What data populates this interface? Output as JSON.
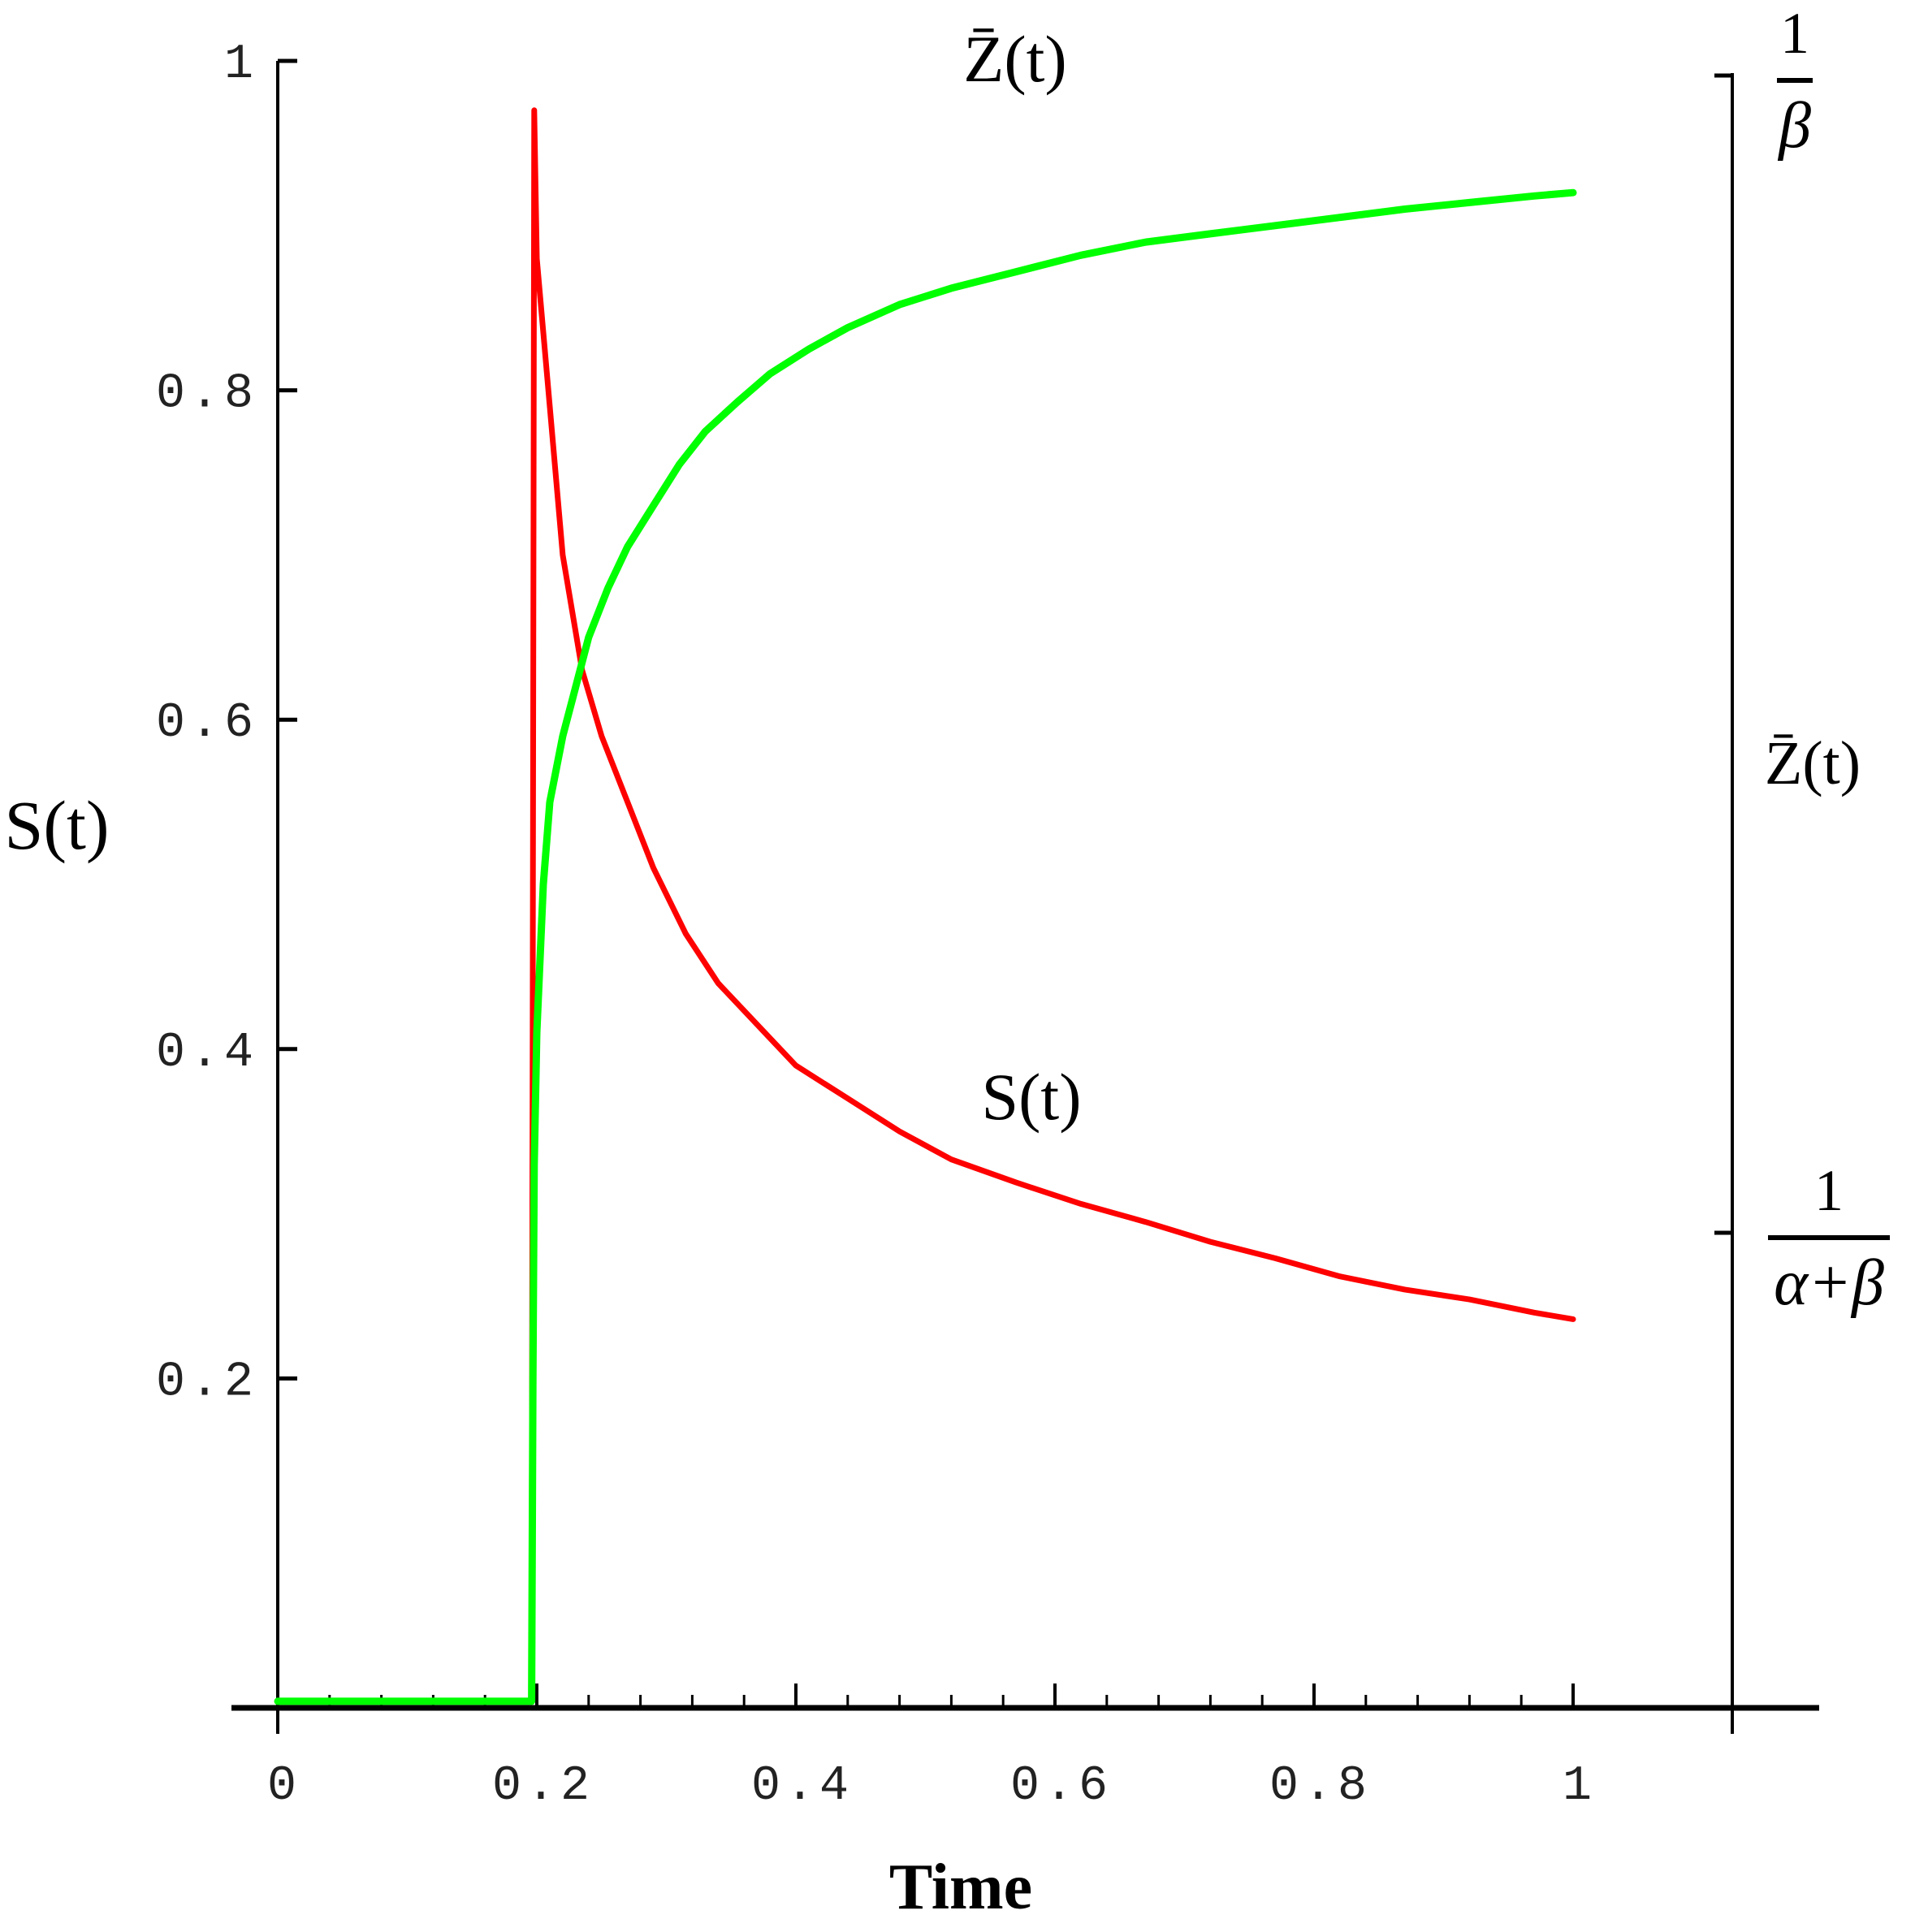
{
  "chart_data": {
    "type": "line",
    "xlabel": "Time",
    "ylabel": "S(t)",
    "right_axis_label": "Z̄(t)",
    "xlim": [
      0,
      1.12
    ],
    "ylim": [
      0,
      1
    ],
    "x_ticks": [
      0,
      0.2,
      0.4,
      0.6,
      0.8,
      1
    ],
    "x_tick_labels": [
      "0",
      "0.2",
      "0.4",
      "0.6",
      "0.8",
      "1"
    ],
    "y_ticks": [
      0.2,
      0.4,
      0.6,
      0.8,
      1
    ],
    "y_tick_labels": [
      "0.2",
      "0.4",
      "0.6",
      "0.8",
      "1"
    ],
    "right_axis_ticks": [
      {
        "value": 0.995,
        "numerator": "1",
        "denominator": "β"
      },
      {
        "value": 0.29,
        "numerator": "1",
        "denominator": "α+β"
      }
    ],
    "grid": false,
    "series": [
      {
        "name": "S(t)",
        "color": "#ff0000",
        "points": [
          [
            0.196,
            0.03
          ],
          [
            0.197,
            0.5
          ],
          [
            0.198,
            0.97
          ],
          [
            0.2,
            0.88
          ],
          [
            0.21,
            0.79
          ],
          [
            0.22,
            0.7
          ],
          [
            0.235,
            0.63
          ],
          [
            0.25,
            0.59
          ],
          [
            0.27,
            0.55
          ],
          [
            0.29,
            0.51
          ],
          [
            0.315,
            0.47
          ],
          [
            0.34,
            0.44
          ],
          [
            0.37,
            0.415
          ],
          [
            0.4,
            0.39
          ],
          [
            0.44,
            0.37
          ],
          [
            0.48,
            0.35
          ],
          [
            0.52,
            0.333
          ],
          [
            0.57,
            0.319
          ],
          [
            0.62,
            0.306
          ],
          [
            0.67,
            0.295
          ],
          [
            0.72,
            0.283
          ],
          [
            0.77,
            0.273
          ],
          [
            0.82,
            0.262
          ],
          [
            0.87,
            0.254
          ],
          [
            0.92,
            0.248
          ],
          [
            0.97,
            0.24
          ],
          [
            1.0,
            0.236
          ]
        ]
      },
      {
        "name": "Z̄(t)",
        "color": "#00ff00",
        "points": [
          [
            0,
            0.004
          ],
          [
            0.196,
            0.004
          ],
          [
            0.197,
            0.2
          ],
          [
            0.198,
            0.33
          ],
          [
            0.2,
            0.41
          ],
          [
            0.205,
            0.5
          ],
          [
            0.21,
            0.55
          ],
          [
            0.22,
            0.59
          ],
          [
            0.23,
            0.62
          ],
          [
            0.24,
            0.65
          ],
          [
            0.255,
            0.68
          ],
          [
            0.27,
            0.705
          ],
          [
            0.29,
            0.73
          ],
          [
            0.31,
            0.755
          ],
          [
            0.33,
            0.775
          ],
          [
            0.355,
            0.793
          ],
          [
            0.38,
            0.81
          ],
          [
            0.41,
            0.825
          ],
          [
            0.44,
            0.838
          ],
          [
            0.48,
            0.852
          ],
          [
            0.52,
            0.862
          ],
          [
            0.57,
            0.872
          ],
          [
            0.62,
            0.882
          ],
          [
            0.67,
            0.89
          ],
          [
            0.72,
            0.895
          ],
          [
            0.77,
            0.9
          ],
          [
            0.82,
            0.905
          ],
          [
            0.87,
            0.91
          ],
          [
            0.92,
            0.914
          ],
          [
            0.97,
            0.918
          ],
          [
            1.0,
            0.92
          ]
        ]
      }
    ],
    "annotations": [
      {
        "text": "Z̄(t)",
        "near_series": "Z̄(t)",
        "position": "top"
      },
      {
        "text": "S(t)",
        "near_series": "S(t)",
        "position": "middle-right"
      }
    ]
  }
}
